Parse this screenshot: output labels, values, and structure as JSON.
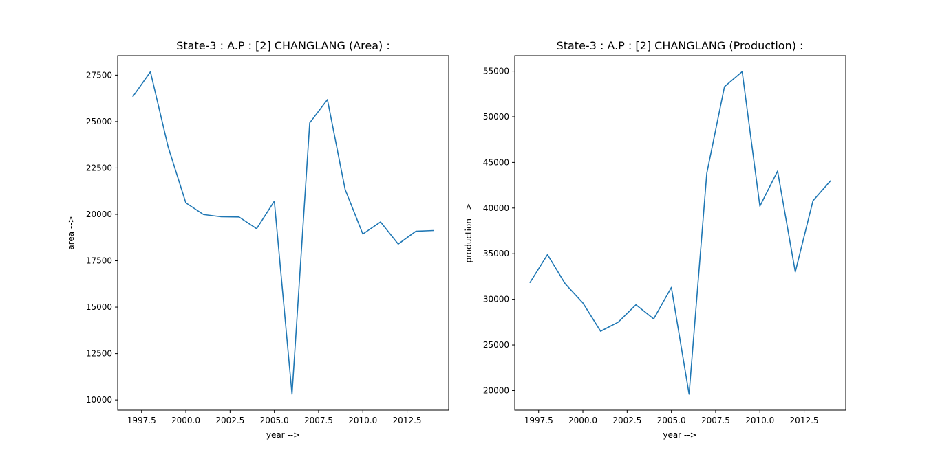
{
  "chart_data": [
    {
      "type": "line",
      "title": "State-3 : A.P : [2] CHANGLANG (Area) :",
      "xlabel": "year -->",
      "ylabel": "area -->",
      "x": [
        1997,
        1998,
        1999,
        2000,
        2001,
        2002,
        2003,
        2004,
        2005,
        2006,
        2007,
        2008,
        2009,
        2010,
        2011,
        2012,
        2013,
        2014
      ],
      "series": [
        {
          "values": [
            26330,
            27680,
            23640,
            20620,
            19990,
            19870,
            19860,
            19230,
            20710,
            10310,
            24930,
            26180,
            21340,
            18940,
            19590,
            18400,
            19090,
            19130
          ]
        }
      ],
      "xticks": [
        "1997.5",
        "2000.0",
        "2002.5",
        "2005.0",
        "2007.5",
        "2010.0",
        "2012.5"
      ],
      "yticks": [
        "10000",
        "12500",
        "15000",
        "17500",
        "20000",
        "22500",
        "25000",
        "27500"
      ],
      "xlim": [
        1996.15,
        2014.85
      ],
      "ylim": [
        9450,
        28550
      ],
      "grid": false,
      "color": "#1f77b4"
    },
    {
      "type": "line",
      "title": "State-3 : A.P : [2] CHANGLANG (Production) :",
      "xlabel": "year -->",
      "ylabel": "production -->",
      "x": [
        1997,
        1998,
        1999,
        2000,
        2001,
        2002,
        2003,
        2004,
        2005,
        2006,
        2007,
        2008,
        2009,
        2010,
        2011,
        2012,
        2013,
        2014
      ],
      "series": [
        {
          "values": [
            31800,
            34900,
            31700,
            29600,
            26500,
            27500,
            29400,
            27850,
            31300,
            19600,
            43800,
            53300,
            54950,
            40200,
            44050,
            33000,
            40800,
            43000
          ]
        }
      ],
      "xticks": [
        "1997.5",
        "2000.0",
        "2002.5",
        "2005.0",
        "2007.5",
        "2010.0",
        "2012.5"
      ],
      "yticks": [
        "20000",
        "25000",
        "30000",
        "35000",
        "40000",
        "45000",
        "50000",
        "55000"
      ],
      "xlim": [
        1996.15,
        2014.85
      ],
      "ylim": [
        17850,
        56700
      ],
      "grid": false,
      "color": "#1f77b4"
    }
  ]
}
